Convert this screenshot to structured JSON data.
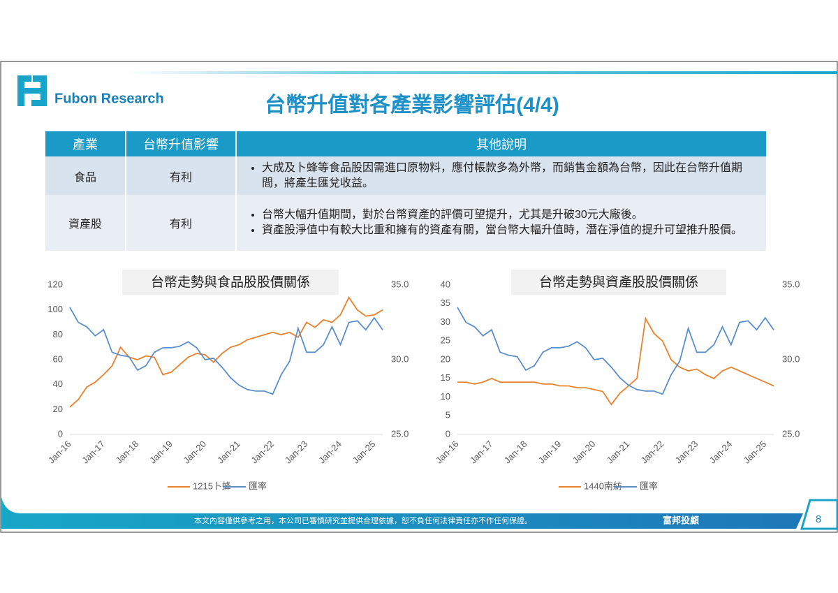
{
  "header": {
    "brand": "Fubon Research",
    "title": "台幣升值對各產業影響評估(4/4)"
  },
  "table": {
    "columns": [
      "產業",
      "台幣升值影響",
      "其他說明"
    ],
    "rows": [
      {
        "industry": "食品",
        "impact": "有利",
        "notes": [
          "大成及卜蜂等食品股因需進口原物料，應付帳款多為外幣，而銷售金額為台幣，因此在台幣升值期間，將產生匯兌收益。"
        ]
      },
      {
        "industry": "資產股",
        "impact": "有利",
        "notes": [
          "台幣大幅升值期間，對於台幣資產的評價可望提升，尤其是升破30元大廠後。",
          "資產股淨值中有較大比重和擁有的資產有關，當台幣大幅升值時，潛在淨值的提升可望推升股價。"
        ]
      }
    ]
  },
  "chart_data": [
    {
      "type": "line",
      "title": "台幣走勢與食品股股價關係",
      "categories": [
        "Jan-16",
        null,
        null,
        null,
        "Jan-17",
        null,
        null,
        null,
        "Jan-18",
        null,
        null,
        null,
        "Jan-19",
        null,
        null,
        null,
        "Jan-20",
        null,
        null,
        null,
        "Jan-21",
        null,
        null,
        null,
        "Jan-22",
        null,
        null,
        null,
        "Jan-23",
        null,
        null,
        null,
        "Jan-24",
        null,
        null,
        null,
        "Jan-25",
        null
      ],
      "ylim": [
        0,
        120
      ],
      "yticks": [
        0,
        20,
        40,
        60,
        80,
        100,
        120
      ],
      "y2lim": [
        25,
        35
      ],
      "y2ticks": [
        {
          "value": 25,
          "label": "25.0"
        },
        {
          "value": 30,
          "label": "30.0"
        },
        {
          "value": 35,
          "label": "35.0"
        }
      ],
      "series": [
        {
          "name": "1215卜蜂",
          "color": "#e8822e",
          "values": [
            22,
            28,
            38,
            42,
            48,
            55,
            70,
            62,
            60,
            63,
            62,
            48,
            50,
            56,
            62,
            65,
            64,
            58,
            65,
            70,
            72,
            76,
            78,
            80,
            82,
            80,
            82,
            78,
            90,
            86,
            92,
            90,
            96,
            110,
            100,
            95,
            96,
            100
          ]
        },
        {
          "name": "匯率",
          "color": "#5b8fc9",
          "axis": "y2",
          "values": [
            33.5,
            32.5,
            32.2,
            31.6,
            32.0,
            30.5,
            30.3,
            30.2,
            29.3,
            29.6,
            30.5,
            30.8,
            30.8,
            30.9,
            31.2,
            30.8,
            30.0,
            30.1,
            29.5,
            28.8,
            28.3,
            28.0,
            27.9,
            27.9,
            27.7,
            29.0,
            29.9,
            32.1,
            30.5,
            30.5,
            31.0,
            32.2,
            31.0,
            32.5,
            32.6,
            32.0,
            32.8,
            32.0
          ]
        }
      ]
    },
    {
      "type": "line",
      "title": "台幣走勢與資產股股價關係",
      "categories": [
        "Jan-16",
        null,
        null,
        null,
        "Jan-17",
        null,
        null,
        null,
        "Jan-18",
        null,
        null,
        null,
        "Jan-19",
        null,
        null,
        null,
        "Jan-20",
        null,
        null,
        null,
        "Jan-21",
        null,
        null,
        null,
        "Jan-22",
        null,
        null,
        null,
        "Jan-23",
        null,
        null,
        null,
        "Jan-24",
        null,
        null,
        null,
        "Jan-25",
        null
      ],
      "ylim": [
        0,
        40
      ],
      "yticks": [
        0,
        5,
        10,
        15,
        20,
        25,
        30,
        35,
        40
      ],
      "y2lim": [
        25,
        35
      ],
      "y2ticks": [
        {
          "value": 25,
          "label": "25.0"
        },
        {
          "value": 30,
          "label": "30.0"
        },
        {
          "value": 35,
          "label": "35.0"
        }
      ],
      "series": [
        {
          "name": "1440南紡",
          "color": "#e8822e",
          "values": [
            14,
            14,
            13.5,
            14,
            15,
            14,
            14,
            14,
            14,
            14,
            13.5,
            13.5,
            13,
            13,
            12.5,
            12.5,
            12,
            11.5,
            8,
            11,
            13,
            15,
            31,
            27,
            25,
            20,
            18,
            17,
            17.5,
            16,
            15,
            17,
            18,
            17,
            16,
            15,
            14,
            13
          ]
        },
        {
          "name": "匯率",
          "color": "#5b8fc9",
          "axis": "y2",
          "values": [
            33.5,
            32.5,
            32.2,
            31.6,
            32.0,
            30.5,
            30.3,
            30.2,
            29.3,
            29.6,
            30.5,
            30.8,
            30.8,
            30.9,
            31.2,
            30.8,
            30.0,
            30.1,
            29.5,
            28.8,
            28.3,
            28.0,
            27.9,
            27.9,
            27.7,
            29.0,
            29.9,
            32.1,
            30.5,
            30.5,
            31.0,
            32.2,
            31.0,
            32.5,
            32.6,
            32.0,
            32.8,
            32.0
          ]
        }
      ]
    }
  ],
  "footer": {
    "disclaimer": "本文內容僅供參考之用，本公司已審慎研究並提供合理依據，恕不負任何法律責任亦不作任何保證。",
    "company": "富邦投顧",
    "page": "8"
  }
}
